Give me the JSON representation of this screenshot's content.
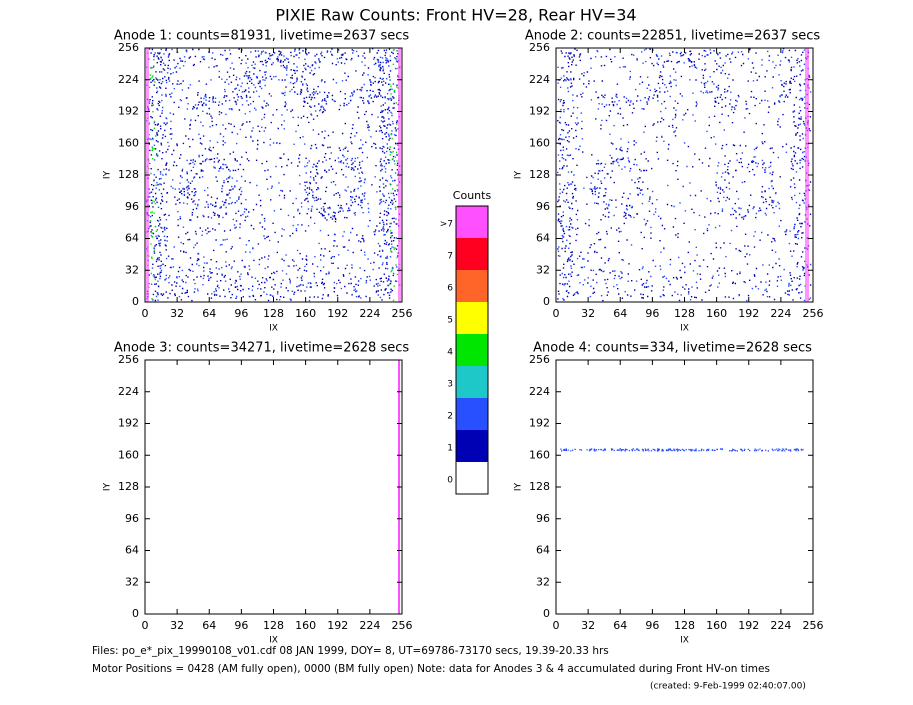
{
  "chart_data": {
    "type": "image-grid",
    "title": "PIXIE Raw Counts:  Front HV=28, Rear HV=34",
    "panels": [
      {
        "title": "Anode 1: counts=81931, livetime=2637 secs",
        "xlabel": "IX",
        "ylabel": "IY",
        "xlim": [
          0,
          256
        ],
        "ylim": [
          0,
          256
        ],
        "xticks": [
          0,
          32,
          64,
          96,
          128,
          160,
          192,
          224,
          256
        ],
        "yticks": [
          0,
          32,
          64,
          96,
          128,
          160,
          192,
          224,
          256
        ]
      },
      {
        "title": "Anode 2: counts=22851, livetime=2637 secs",
        "xlabel": "IX",
        "ylabel": "IY",
        "xlim": [
          0,
          256
        ],
        "ylim": [
          0,
          256
        ],
        "xticks": [
          0,
          32,
          64,
          96,
          128,
          160,
          192,
          224,
          256
        ],
        "yticks": [
          0,
          32,
          64,
          96,
          128,
          160,
          192,
          224,
          256
        ]
      },
      {
        "title": "Anode 3: counts=34271, livetime=2628 secs",
        "xlabel": "IX",
        "ylabel": "IY",
        "xlim": [
          0,
          256
        ],
        "ylim": [
          0,
          256
        ],
        "xticks": [
          0,
          32,
          64,
          96,
          128,
          160,
          192,
          224,
          256
        ],
        "yticks": [
          0,
          32,
          64,
          96,
          128,
          160,
          192,
          224,
          256
        ]
      },
      {
        "title": "Anode 4: counts=334, livetime=2628 secs",
        "xlabel": "IX",
        "ylabel": "IY",
        "xlim": [
          0,
          256
        ],
        "ylim": [
          0,
          256
        ],
        "xticks": [
          0,
          32,
          64,
          96,
          128,
          160,
          192,
          224,
          256
        ],
        "yticks": [
          0,
          32,
          64,
          96,
          128,
          160,
          192,
          224,
          256
        ]
      }
    ],
    "colorbar": {
      "title": "Counts",
      "labels": [
        "0",
        "1",
        "2",
        "3",
        "4",
        "5",
        "6",
        "7",
        ">7"
      ],
      "colors": [
        "#ffffff",
        "#0000b4",
        "#2850ff",
        "#1ec8c8",
        "#00e600",
        "#ffff00",
        "#ff6428",
        "#ff0020",
        "#ff50ff"
      ]
    },
    "footer": [
      "Files: po_e*_pix_19990108_v01.cdf    08 JAN 1999, DOY=  8, UT=69786-73170 secs, 19.39-20.33 hrs",
      "Motor Positions = 0428 (AM fully open), 0000 (BM fully open)    Note: data for Anodes 3 & 4 accumulated during Front HV-on times",
      "(created:  9-Feb-1999 02:40:07.00)"
    ]
  }
}
